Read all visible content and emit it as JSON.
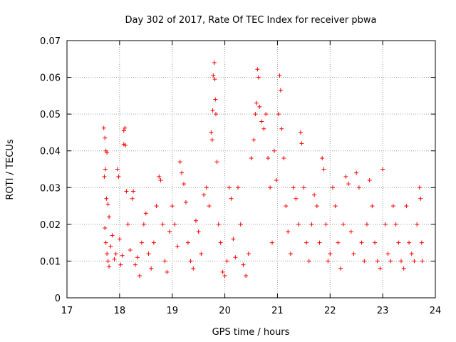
{
  "chart_data": {
    "type": "scatter",
    "title": "Day 302 of 2017, Rate Of TEC Index for receiver pbwa",
    "xlabel": "GPS time / hours",
    "ylabel": "ROTI / TECUs",
    "xlim": [
      17,
      24
    ],
    "ylim": [
      0,
      0.07
    ],
    "xticks": [
      "17",
      "18",
      "19",
      "20",
      "21",
      "22",
      "23",
      "24"
    ],
    "yticks": [
      "0",
      "0.01",
      "0.02",
      "0.03",
      "0.04",
      "0.05",
      "0.06",
      "0.07"
    ],
    "grid": true,
    "marker": "+",
    "color": "#ff0000",
    "series": [
      {
        "name": "ROTI",
        "note": "dense cloud of points (representative subset)",
        "points": [
          [
            17.7,
            0.0462
          ],
          [
            17.72,
            0.0435
          ],
          [
            17.74,
            0.04
          ],
          [
            17.76,
            0.0395
          ],
          [
            17.71,
            0.033
          ],
          [
            17.73,
            0.035
          ],
          [
            17.75,
            0.027
          ],
          [
            17.78,
            0.0255
          ],
          [
            17.8,
            0.022
          ],
          [
            17.72,
            0.019
          ],
          [
            17.74,
            0.015
          ],
          [
            17.76,
            0.012
          ],
          [
            17.78,
            0.01
          ],
          [
            17.8,
            0.0085
          ],
          [
            17.83,
            0.014
          ],
          [
            17.86,
            0.017
          ],
          [
            17.9,
            0.0105
          ],
          [
            17.93,
            0.012
          ],
          [
            17.96,
            0.035
          ],
          [
            17.98,
            0.033
          ],
          [
            18.0,
            0.016
          ],
          [
            18.02,
            0.009
          ],
          [
            18.05,
            0.0115
          ],
          [
            18.08,
            0.0455
          ],
          [
            18.1,
            0.0462
          ],
          [
            18.08,
            0.0418
          ],
          [
            18.11,
            0.0415
          ],
          [
            18.13,
            0.029
          ],
          [
            18.16,
            0.02
          ],
          [
            18.2,
            0.013
          ],
          [
            18.24,
            0.027
          ],
          [
            18.26,
            0.029
          ],
          [
            18.3,
            0.009
          ],
          [
            18.34,
            0.011
          ],
          [
            18.38,
            0.006
          ],
          [
            18.42,
            0.015
          ],
          [
            18.46,
            0.02
          ],
          [
            18.5,
            0.023
          ],
          [
            18.55,
            0.012
          ],
          [
            18.6,
            0.008
          ],
          [
            18.65,
            0.015
          ],
          [
            18.7,
            0.025
          ],
          [
            18.75,
            0.033
          ],
          [
            18.78,
            0.032
          ],
          [
            18.82,
            0.02
          ],
          [
            18.86,
            0.01
          ],
          [
            18.9,
            0.007
          ],
          [
            18.95,
            0.018
          ],
          [
            19.0,
            0.025
          ],
          [
            19.05,
            0.02
          ],
          [
            19.1,
            0.014
          ],
          [
            19.15,
            0.037
          ],
          [
            19.18,
            0.034
          ],
          [
            19.22,
            0.031
          ],
          [
            19.26,
            0.026
          ],
          [
            19.3,
            0.015
          ],
          [
            19.35,
            0.01
          ],
          [
            19.4,
            0.008
          ],
          [
            19.45,
            0.021
          ],
          [
            19.5,
            0.018
          ],
          [
            19.55,
            0.012
          ],
          [
            19.6,
            0.028
          ],
          [
            19.65,
            0.03
          ],
          [
            19.7,
            0.025
          ],
          [
            19.74,
            0.045
          ],
          [
            19.76,
            0.043
          ],
          [
            19.77,
            0.051
          ],
          [
            19.78,
            0.0605
          ],
          [
            19.8,
            0.064
          ],
          [
            19.81,
            0.0595
          ],
          [
            19.82,
            0.054
          ],
          [
            19.83,
            0.05
          ],
          [
            19.85,
            0.037
          ],
          [
            19.88,
            0.02
          ],
          [
            19.92,
            0.015
          ],
          [
            19.96,
            0.007
          ],
          [
            20.0,
            0.006
          ],
          [
            20.04,
            0.01
          ],
          [
            20.08,
            0.03
          ],
          [
            20.12,
            0.027
          ],
          [
            20.16,
            0.016
          ],
          [
            20.2,
            0.011
          ],
          [
            20.25,
            0.03
          ],
          [
            20.3,
            0.02
          ],
          [
            20.35,
            0.009
          ],
          [
            20.4,
            0.006
          ],
          [
            20.45,
            0.012
          ],
          [
            20.5,
            0.038
          ],
          [
            20.55,
            0.043
          ],
          [
            20.58,
            0.05
          ],
          [
            20.6,
            0.053
          ],
          [
            20.62,
            0.0622
          ],
          [
            20.64,
            0.06
          ],
          [
            20.66,
            0.052
          ],
          [
            20.7,
            0.048
          ],
          [
            20.74,
            0.046
          ],
          [
            20.78,
            0.05
          ],
          [
            20.82,
            0.038
          ],
          [
            20.86,
            0.03
          ],
          [
            20.9,
            0.015
          ],
          [
            20.94,
            0.04
          ],
          [
            20.98,
            0.032
          ],
          [
            21.02,
            0.05
          ],
          [
            21.04,
            0.0605
          ],
          [
            21.06,
            0.0565
          ],
          [
            21.08,
            0.046
          ],
          [
            21.12,
            0.038
          ],
          [
            21.16,
            0.025
          ],
          [
            21.2,
            0.018
          ],
          [
            21.25,
            0.012
          ],
          [
            21.3,
            0.03
          ],
          [
            21.35,
            0.027
          ],
          [
            21.4,
            0.02
          ],
          [
            21.44,
            0.045
          ],
          [
            21.46,
            0.042
          ],
          [
            21.5,
            0.03
          ],
          [
            21.55,
            0.015
          ],
          [
            21.6,
            0.01
          ],
          [
            21.65,
            0.02
          ],
          [
            21.7,
            0.028
          ],
          [
            21.75,
            0.025
          ],
          [
            21.8,
            0.015
          ],
          [
            21.85,
            0.038
          ],
          [
            21.88,
            0.035
          ],
          [
            21.92,
            0.02
          ],
          [
            21.96,
            0.01
          ],
          [
            22.0,
            0.012
          ],
          [
            22.05,
            0.03
          ],
          [
            22.1,
            0.025
          ],
          [
            22.15,
            0.015
          ],
          [
            22.2,
            0.008
          ],
          [
            22.25,
            0.02
          ],
          [
            22.3,
            0.033
          ],
          [
            22.35,
            0.031
          ],
          [
            22.4,
            0.018
          ],
          [
            22.45,
            0.012
          ],
          [
            22.5,
            0.034
          ],
          [
            22.55,
            0.03
          ],
          [
            22.6,
            0.015
          ],
          [
            22.65,
            0.01
          ],
          [
            22.7,
            0.02
          ],
          [
            22.75,
            0.032
          ],
          [
            22.8,
            0.025
          ],
          [
            22.85,
            0.015
          ],
          [
            22.9,
            0.01
          ],
          [
            22.95,
            0.008
          ],
          [
            23.0,
            0.035
          ],
          [
            23.05,
            0.02
          ],
          [
            23.1,
            0.012
          ],
          [
            23.15,
            0.01
          ],
          [
            23.2,
            0.025
          ],
          [
            23.25,
            0.02
          ],
          [
            23.3,
            0.015
          ],
          [
            23.35,
            0.01
          ],
          [
            23.4,
            0.008
          ],
          [
            23.45,
            0.025
          ],
          [
            23.5,
            0.015
          ],
          [
            23.55,
            0.012
          ],
          [
            23.6,
            0.01
          ],
          [
            23.65,
            0.02
          ],
          [
            23.7,
            0.03
          ],
          [
            23.72,
            0.027
          ],
          [
            23.74,
            0.015
          ],
          [
            23.75,
            0.01
          ]
        ]
      }
    ]
  }
}
